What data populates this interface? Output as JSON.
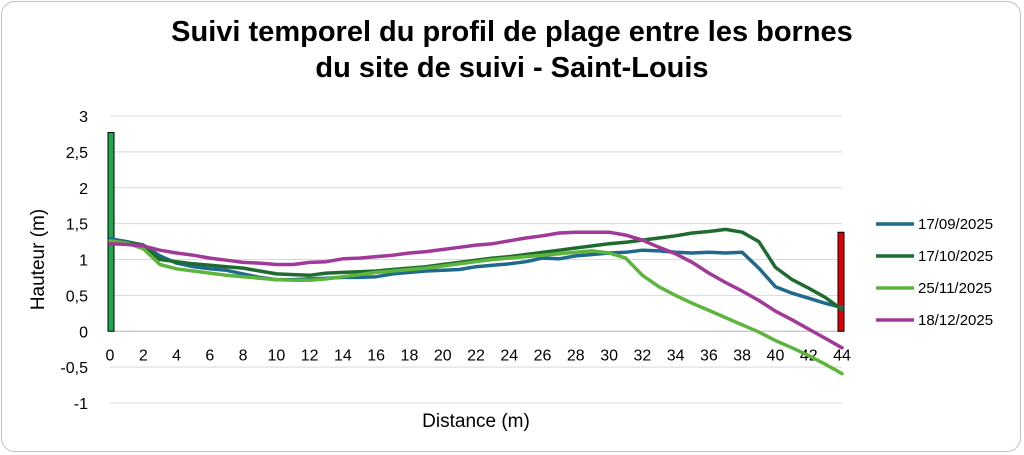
{
  "chart_data": {
    "type": "line",
    "title_lines": [
      "Suivi temporel du profil de plage entre les bornes",
      "du site de suivi - Saint-Louis"
    ],
    "xlabel": "Distance (m)",
    "ylabel": "Hauteur (m)",
    "xlim": [
      0,
      44
    ],
    "ylim": [
      -1,
      3
    ],
    "x_ticks": [
      "0",
      "2",
      "4",
      "6",
      "8",
      "10",
      "12",
      "14",
      "16",
      "18",
      "20",
      "22",
      "24",
      "26",
      "28",
      "30",
      "32",
      "34",
      "36",
      "38",
      "40",
      "42",
      "44"
    ],
    "y_ticks": [
      {
        "value": 3,
        "label": "3"
      },
      {
        "value": 2.5,
        "label": "2,5"
      },
      {
        "value": 2,
        "label": "2"
      },
      {
        "value": 1.5,
        "label": "1,5"
      },
      {
        "value": 1,
        "label": "1"
      },
      {
        "value": 0.5,
        "label": "0,5"
      },
      {
        "value": 0,
        "label": "0"
      },
      {
        "value": -0.5,
        "label": "-0,5"
      },
      {
        "value": -1,
        "label": "-1"
      }
    ],
    "grid": true,
    "legend_position": "right",
    "markers": [
      {
        "x": 0,
        "height": 2.77,
        "color": "#1fa84f"
      },
      {
        "x": 44,
        "height": 1.38,
        "color": "#e00000"
      }
    ],
    "series": [
      {
        "name": "17/09/2025",
        "color": "#1f6a8c",
        "x": [
          0,
          1,
          2,
          3,
          4,
          5,
          6,
          7,
          8,
          9,
          10,
          11,
          12,
          13,
          14,
          15,
          16,
          17,
          18,
          19,
          20,
          21,
          22,
          23,
          24,
          25,
          26,
          27,
          28,
          29,
          30,
          31,
          32,
          33,
          34,
          35,
          36,
          37,
          38,
          39,
          40,
          41,
          42,
          43,
          44
        ],
        "y": [
          1.29,
          1.25,
          1.2,
          1.05,
          0.95,
          0.9,
          0.87,
          0.85,
          0.8,
          0.75,
          0.72,
          0.72,
          0.73,
          0.74,
          0.75,
          0.75,
          0.76,
          0.8,
          0.82,
          0.84,
          0.85,
          0.86,
          0.9,
          0.92,
          0.94,
          0.97,
          1.02,
          1.01,
          1.05,
          1.07,
          1.09,
          1.1,
          1.13,
          1.12,
          1.1,
          1.09,
          1.1,
          1.09,
          1.1,
          0.88,
          0.62,
          0.53,
          0.46,
          0.39,
          0.33
        ]
      },
      {
        "name": "17/10/2025",
        "color": "#1e6b30",
        "x": [
          0,
          1,
          2,
          3,
          4,
          5,
          6,
          7,
          8,
          9,
          10,
          11,
          12,
          13,
          14,
          15,
          16,
          17,
          18,
          19,
          20,
          21,
          22,
          23,
          24,
          25,
          26,
          27,
          28,
          29,
          30,
          31,
          32,
          33,
          34,
          35,
          36,
          37,
          38,
          39,
          40,
          41,
          42,
          43,
          44
        ],
        "y": [
          1.26,
          1.24,
          1.2,
          1.0,
          0.97,
          0.94,
          0.92,
          0.9,
          0.88,
          0.84,
          0.8,
          0.79,
          0.78,
          0.81,
          0.82,
          0.83,
          0.84,
          0.86,
          0.88,
          0.9,
          0.93,
          0.96,
          0.99,
          1.02,
          1.04,
          1.07,
          1.1,
          1.13,
          1.16,
          1.19,
          1.22,
          1.24,
          1.27,
          1.3,
          1.33,
          1.37,
          1.39,
          1.42,
          1.38,
          1.25,
          0.89,
          0.72,
          0.6,
          0.47,
          0.3
        ]
      },
      {
        "name": "25/11/2025",
        "color": "#5db53e",
        "x": [
          0,
          1,
          2,
          3,
          4,
          5,
          6,
          7,
          8,
          9,
          10,
          11,
          12,
          13,
          14,
          15,
          16,
          17,
          18,
          19,
          20,
          21,
          22,
          23,
          24,
          25,
          26,
          27,
          28,
          29,
          30,
          31,
          32,
          33,
          34,
          35,
          36,
          37,
          38,
          39,
          40,
          41,
          42,
          43,
          44
        ],
        "y": [
          1.26,
          1.23,
          1.15,
          0.93,
          0.87,
          0.84,
          0.81,
          0.78,
          0.76,
          0.74,
          0.72,
          0.71,
          0.71,
          0.73,
          0.76,
          0.79,
          0.82,
          0.84,
          0.86,
          0.88,
          0.91,
          0.94,
          0.97,
          1.0,
          1.02,
          1.04,
          1.06,
          1.08,
          1.1,
          1.12,
          1.09,
          1.02,
          0.78,
          0.62,
          0.5,
          0.39,
          0.29,
          0.19,
          0.09,
          -0.01,
          -0.13,
          -0.23,
          -0.34,
          -0.46,
          -0.59
        ]
      },
      {
        "name": "18/12/2025",
        "color": "#a0399a",
        "x": [
          0,
          1,
          2,
          3,
          4,
          5,
          6,
          7,
          8,
          9,
          10,
          11,
          12,
          13,
          14,
          15,
          16,
          17,
          18,
          19,
          20,
          21,
          22,
          23,
          24,
          25,
          26,
          27,
          28,
          29,
          30,
          31,
          32,
          33,
          34,
          35,
          36,
          37,
          38,
          39,
          40,
          41,
          42,
          43,
          44
        ],
        "y": [
          1.22,
          1.21,
          1.19,
          1.13,
          1.09,
          1.06,
          1.02,
          0.99,
          0.96,
          0.95,
          0.93,
          0.93,
          0.96,
          0.97,
          1.01,
          1.02,
          1.04,
          1.06,
          1.09,
          1.11,
          1.14,
          1.17,
          1.2,
          1.22,
          1.26,
          1.3,
          1.33,
          1.37,
          1.38,
          1.38,
          1.38,
          1.34,
          1.27,
          1.17,
          1.08,
          0.96,
          0.81,
          0.68,
          0.56,
          0.43,
          0.28,
          0.16,
          0.03,
          -0.1,
          -0.23
        ]
      }
    ]
  }
}
